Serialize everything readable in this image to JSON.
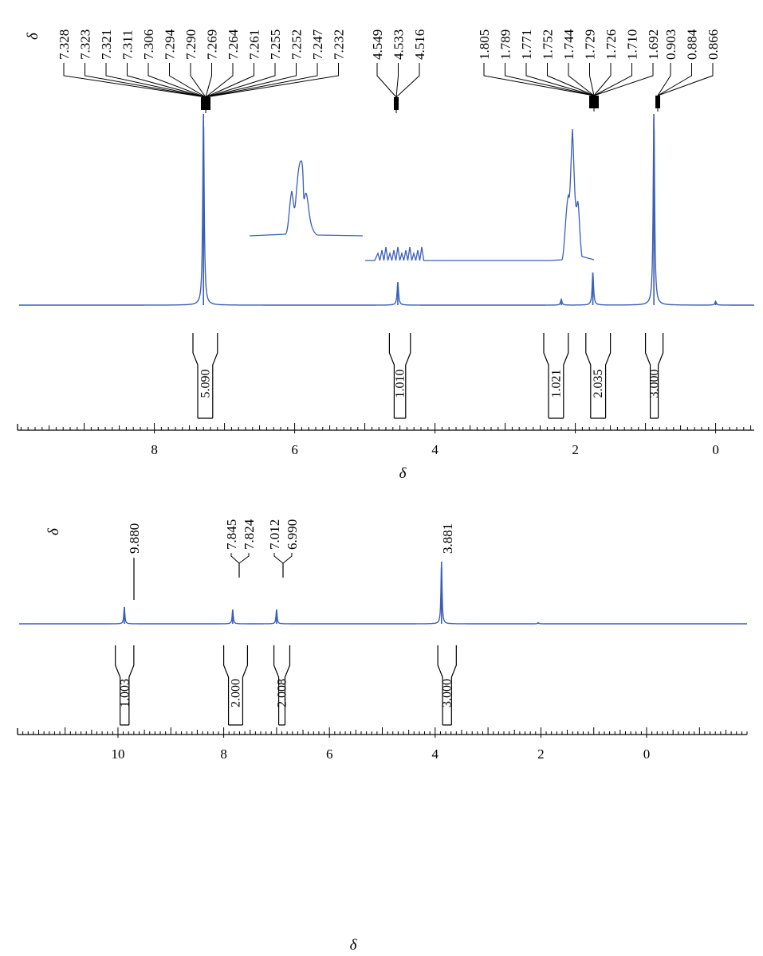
{
  "chart_data": [
    {
      "type": "line",
      "title": "",
      "xlabel": "δ",
      "ylabel": "",
      "delta_symbol": "δ",
      "x_reversed": true,
      "xlim": [
        9.95,
        -0.55
      ],
      "x_ticks": [
        "8",
        "6",
        "4",
        "2",
        "0"
      ],
      "line_color": "#3a5fb8",
      "grid": false,
      "peak_labels": [
        {
          "group": 1,
          "values": [
            "7.328",
            "7.323",
            "7.321",
            "7.311",
            "7.306",
            "7.294",
            "7.290",
            "7.269",
            "7.264",
            "7.261",
            "7.255",
            "7.252",
            "7.247",
            "7.232"
          ]
        },
        {
          "group": 2,
          "values": [
            "4.549",
            "4.533",
            "4.516"
          ]
        },
        {
          "group": 3,
          "values": [
            "1.805",
            "1.789",
            "1.771",
            "1.752",
            "1.744",
            "1.729",
            "1.726",
            "1.710",
            "1.692"
          ]
        },
        {
          "group": 4,
          "values": [
            "0.903",
            "0.884",
            "0.866"
          ]
        }
      ],
      "integrals": [
        {
          "from": 7.45,
          "to": 7.1,
          "value": "5.090"
        },
        {
          "from": 4.65,
          "to": 4.35,
          "value": "1.010"
        },
        {
          "from": 2.45,
          "to": 2.1,
          "value": "1.021"
        },
        {
          "from": 1.85,
          "to": 1.5,
          "value": "2.035"
        },
        {
          "from": 1.0,
          "to": 0.75,
          "value": "3.000"
        }
      ],
      "peaks": [
        {
          "shift": 7.3,
          "height": 1.0
        },
        {
          "shift": 4.53,
          "height": 0.12
        },
        {
          "shift": 2.2,
          "height": 0.03
        },
        {
          "shift": 1.75,
          "height": 0.17
        },
        {
          "shift": 0.88,
          "height": 1.0
        },
        {
          "shift": 0.0,
          "height": 0.02
        }
      ]
    },
    {
      "type": "line",
      "title": "",
      "xlabel": "δ",
      "ylabel": "",
      "delta_symbol": "δ",
      "x_reversed": true,
      "xlim": [
        11.9,
        -1.9
      ],
      "x_ticks": [
        "10",
        "8",
        "6",
        "4",
        "2",
        "0"
      ],
      "line_color": "#3a5fb8",
      "grid": false,
      "peak_labels": [
        {
          "group": 1,
          "values": [
            "9.880"
          ]
        },
        {
          "group": 2,
          "values": [
            "7.845",
            "7.824"
          ]
        },
        {
          "group": 3,
          "values": [
            "7.012",
            "6.990"
          ]
        },
        {
          "group": 4,
          "values": [
            "3.881"
          ]
        }
      ],
      "integrals": [
        {
          "from": 10.05,
          "to": 9.7,
          "value": "1.003"
        },
        {
          "from": 8.0,
          "to": 7.55,
          "value": "2.000"
        },
        {
          "from": 7.05,
          "to": 6.75,
          "value": "2.008"
        },
        {
          "from": 3.95,
          "to": 3.6,
          "value": "3.000"
        }
      ],
      "peaks": [
        {
          "shift": 9.88,
          "height": 0.27
        },
        {
          "shift": 7.83,
          "height": 0.23
        },
        {
          "shift": 7.0,
          "height": 0.23
        },
        {
          "shift": 3.88,
          "height": 1.0
        },
        {
          "shift": 2.05,
          "height": 0.02
        }
      ]
    }
  ]
}
